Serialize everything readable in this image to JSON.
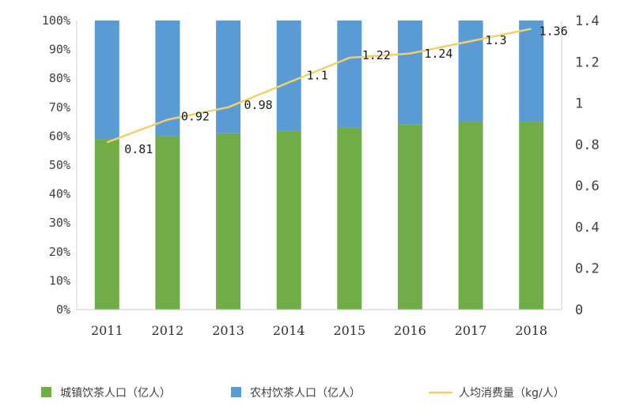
{
  "chart_data": {
    "type": "bar",
    "stacked": true,
    "percent_stacked": true,
    "categories": [
      "2011",
      "2012",
      "2013",
      "2014",
      "2015",
      "2016",
      "2017",
      "2018"
    ],
    "series": [
      {
        "name": "城镇饮茶人口（亿人）",
        "type": "bar",
        "axis": "left",
        "color": "#70ad47",
        "values": [
          59,
          60,
          61,
          62,
          63,
          64,
          65,
          65
        ]
      },
      {
        "name": "农村饮茶人口（亿人）",
        "type": "bar",
        "axis": "left",
        "color": "#5b9bd5",
        "values": [
          41,
          40,
          39,
          38,
          37,
          36,
          35,
          35
        ]
      },
      {
        "name": "人均消费量（kg/人）",
        "type": "line",
        "axis": "right",
        "color": "#f2d25c",
        "values": [
          0.81,
          0.92,
          0.98,
          1.1,
          1.22,
          1.24,
          1.3,
          1.36
        ],
        "labels": [
          "0.81",
          "0.92",
          "0.98",
          "1.1",
          "1.22",
          "1.24",
          "1.3",
          "1.36"
        ]
      }
    ],
    "left_axis": {
      "ylim": [
        0,
        100
      ],
      "ticks": [
        "0%",
        "10%",
        "20%",
        "30%",
        "40%",
        "50%",
        "60%",
        "70%",
        "80%",
        "90%",
        "100%"
      ]
    },
    "right_axis": {
      "ylim": [
        0,
        1.4
      ],
      "ticks": [
        "0",
        "0.2",
        "0.4",
        "0.6",
        "0.8",
        "1",
        "1.2",
        "1.4"
      ]
    },
    "grid": false,
    "legend_position": "bottom"
  }
}
